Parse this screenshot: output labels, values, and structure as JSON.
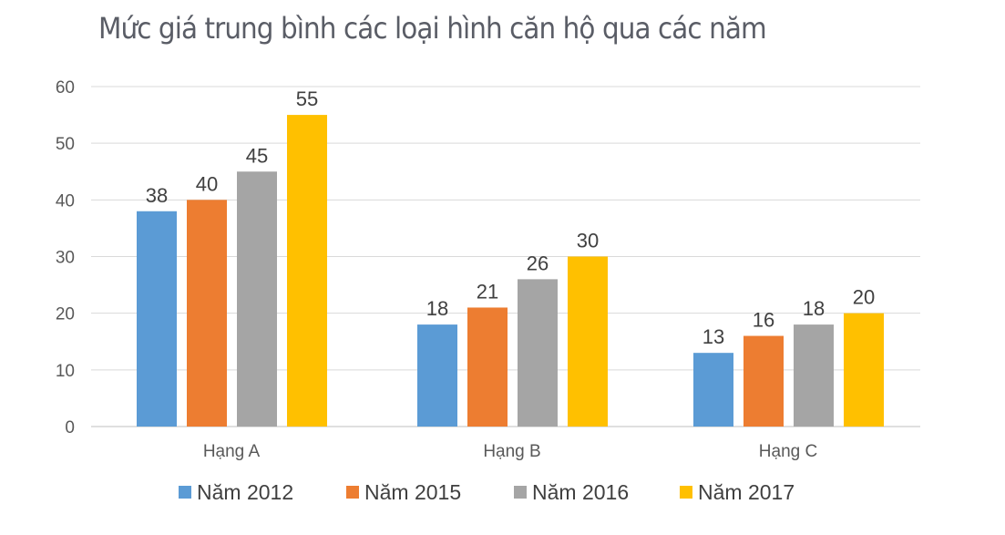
{
  "chart_data": {
    "type": "bar",
    "title": "Mức giá trung bình các loại hình căn hộ qua các năm",
    "xlabel": "",
    "ylabel": "",
    "categories": [
      "Hạng A",
      "Hạng B",
      "Hạng C"
    ],
    "ylim": [
      0,
      60
    ],
    "yticks": [
      0,
      10,
      20,
      30,
      40,
      50,
      60
    ],
    "grid": true,
    "legend": "bottom",
    "series": [
      {
        "name": "Năm 2012",
        "color": "#5b9bd5",
        "values": [
          38,
          18,
          13
        ]
      },
      {
        "name": "Năm 2015",
        "color": "#ed7d31",
        "values": [
          40,
          21,
          16
        ]
      },
      {
        "name": "Năm 2016",
        "color": "#a5a5a5",
        "values": [
          45,
          26,
          18
        ]
      },
      {
        "name": "Năm 2017",
        "color": "#ffc000",
        "values": [
          55,
          30,
          20
        ]
      }
    ]
  }
}
